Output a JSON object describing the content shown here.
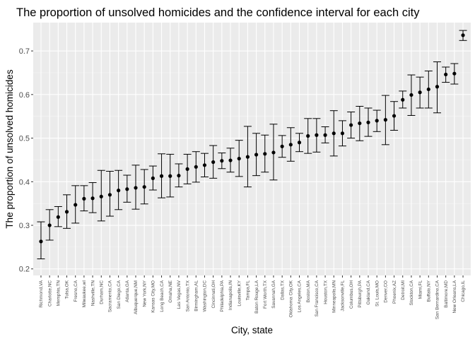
{
  "chart_data": {
    "type": "scatter",
    "title": "The proportion of unsolved homicides and the confidence interval for each city",
    "xlabel": "City, state",
    "ylabel": "The proportion of unsolved homicides",
    "ylim": [
      0.185,
      0.765
    ],
    "yticks": [
      0.2,
      0.3,
      0.4,
      0.5,
      0.6,
      0.7
    ],
    "ytick_labels": [
      "0.2",
      "0.3",
      "0.4",
      "0.5",
      "0.6",
      "0.7"
    ],
    "grid": true,
    "legend": "none",
    "points": [
      {
        "city": "Richmond,VA",
        "estimate": 0.263,
        "lower": 0.223,
        "upper": 0.308
      },
      {
        "city": "Charlotte,NC",
        "estimate": 0.3,
        "lower": 0.266,
        "upper": 0.336
      },
      {
        "city": "Memphis,TN",
        "estimate": 0.319,
        "lower": 0.297,
        "upper": 0.343
      },
      {
        "city": "Tulsa,OK",
        "estimate": 0.331,
        "lower": 0.293,
        "upper": 0.37
      },
      {
        "city": "Fresno,CA",
        "estimate": 0.347,
        "lower": 0.305,
        "upper": 0.391
      },
      {
        "city": "Milwaukee,wI",
        "estimate": 0.361,
        "lower": 0.333,
        "upper": 0.391
      },
      {
        "city": "Nashville,TN",
        "estimate": 0.362,
        "lower": 0.329,
        "upper": 0.398
      },
      {
        "city": "Durham,NC",
        "estimate": 0.366,
        "lower": 0.31,
        "upper": 0.426
      },
      {
        "city": "Sacramento,CA",
        "estimate": 0.37,
        "lower": 0.321,
        "upper": 0.424
      },
      {
        "city": "San Diego,CA",
        "estimate": 0.38,
        "lower": 0.336,
        "upper": 0.426
      },
      {
        "city": "Atlanta,GA",
        "estimate": 0.383,
        "lower": 0.353,
        "upper": 0.415
      },
      {
        "city": "Albuquerque,NM",
        "estimate": 0.386,
        "lower": 0.337,
        "upper": 0.438
      },
      {
        "city": "New York,NY",
        "estimate": 0.388,
        "lower": 0.349,
        "upper": 0.428
      },
      {
        "city": "Kansas City,MO",
        "estimate": 0.408,
        "lower": 0.381,
        "upper": 0.436
      },
      {
        "city": "Long Beach,CA",
        "estimate": 0.413,
        "lower": 0.363,
        "upper": 0.464
      },
      {
        "city": "Omaha,NE",
        "estimate": 0.413,
        "lower": 0.365,
        "upper": 0.463
      },
      {
        "city": "Las Vegas,NV",
        "estimate": 0.414,
        "lower": 0.388,
        "upper": 0.441
      },
      {
        "city": "San Antonio,TX",
        "estimate": 0.429,
        "lower": 0.395,
        "upper": 0.463
      },
      {
        "city": "Birmingham,AL",
        "estimate": 0.434,
        "lower": 0.399,
        "upper": 0.469
      },
      {
        "city": "Washington,DC",
        "estimate": 0.438,
        "lower": 0.411,
        "upper": 0.465
      },
      {
        "city": "Cincinnati,OH",
        "estimate": 0.445,
        "lower": 0.408,
        "upper": 0.483
      },
      {
        "city": "Philadelphia,PA",
        "estimate": 0.448,
        "lower": 0.43,
        "upper": 0.466
      },
      {
        "city": "Indianapolis,IN",
        "estimate": 0.449,
        "lower": 0.422,
        "upper": 0.477
      },
      {
        "city": "Louisville,KY",
        "estimate": 0.453,
        "lower": 0.412,
        "upper": 0.495
      },
      {
        "city": "Tampa,FL",
        "estimate": 0.457,
        "lower": 0.388,
        "upper": 0.527
      },
      {
        "city": "Baton Rouge,LA",
        "estimate": 0.462,
        "lower": 0.414,
        "upper": 0.511
      },
      {
        "city": "Fort Worth,TX",
        "estimate": 0.464,
        "lower": 0.422,
        "upper": 0.507
      },
      {
        "city": "Savannah,GA",
        "estimate": 0.467,
        "lower": 0.404,
        "upper": 0.532
      },
      {
        "city": "Dallas,TX",
        "estimate": 0.481,
        "lower": 0.456,
        "upper": 0.506
      },
      {
        "city": "Oklahoma City,OK",
        "estimate": 0.485,
        "lower": 0.447,
        "upper": 0.524
      },
      {
        "city": "Los Angeles,CA",
        "estimate": 0.49,
        "lower": 0.469,
        "upper": 0.511
      },
      {
        "city": "Boston,MA",
        "estimate": 0.505,
        "lower": 0.465,
        "upper": 0.545
      },
      {
        "city": "San Francisco,CA",
        "estimate": 0.507,
        "lower": 0.468,
        "upper": 0.545
      },
      {
        "city": "Houston,TX",
        "estimate": 0.507,
        "lower": 0.489,
        "upper": 0.526
      },
      {
        "city": "Minneapolis,MN",
        "estimate": 0.511,
        "lower": 0.459,
        "upper": 0.563
      },
      {
        "city": "Jacksonville,FL",
        "estimate": 0.511,
        "lower": 0.482,
        "upper": 0.54
      },
      {
        "city": "Columbus,OH",
        "estimate": 0.53,
        "lower": 0.5,
        "upper": 0.56
      },
      {
        "city": "Pittsburgh,PA",
        "estimate": 0.534,
        "lower": 0.494,
        "upper": 0.573
      },
      {
        "city": "Oakland,CA",
        "estimate": 0.536,
        "lower": 0.504,
        "upper": 0.569
      },
      {
        "city": "St. Louis,MO",
        "estimate": 0.54,
        "lower": 0.515,
        "upper": 0.564
      },
      {
        "city": "Denver,CO",
        "estimate": 0.542,
        "lower": 0.485,
        "upper": 0.598
      },
      {
        "city": "Phoenix,AZ",
        "estimate": 0.551,
        "lower": 0.518,
        "upper": 0.584
      },
      {
        "city": "Detroit,MI",
        "estimate": 0.588,
        "lower": 0.569,
        "upper": 0.608
      },
      {
        "city": "Stockton,CA",
        "estimate": 0.599,
        "lower": 0.552,
        "upper": 0.645
      },
      {
        "city": "Miami,FL",
        "estimate": 0.605,
        "lower": 0.569,
        "upper": 0.64
      },
      {
        "city": "Buffalo,NY",
        "estimate": 0.612,
        "lower": 0.569,
        "upper": 0.654
      },
      {
        "city": "San Bernardino,CA",
        "estimate": 0.618,
        "lower": 0.558,
        "upper": 0.675
      },
      {
        "city": "Baltimore,MD",
        "estimate": 0.646,
        "lower": 0.628,
        "upper": 0.663
      },
      {
        "city": "New Orleans,LA",
        "estimate": 0.648,
        "lower": 0.624,
        "upper": 0.671
      },
      {
        "city": "Chicago,IL",
        "estimate": 0.736,
        "lower": 0.724,
        "upper": 0.747
      }
    ]
  }
}
